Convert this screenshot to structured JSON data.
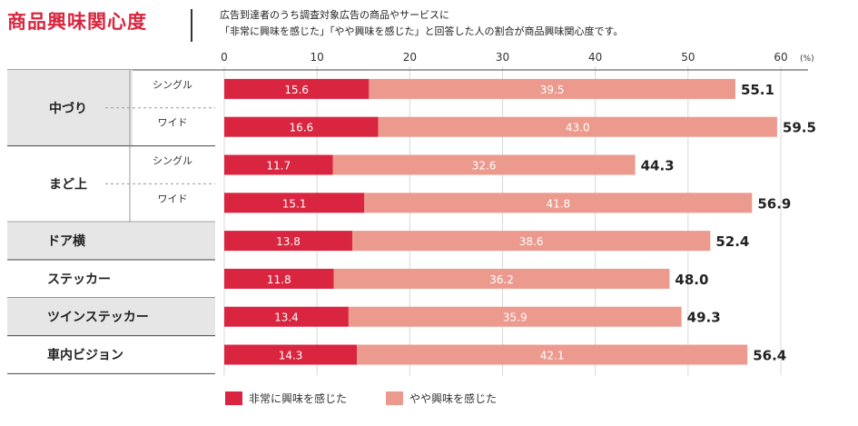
{
  "header": {
    "title": "商品興味関心度",
    "description_line1": "広告到達者のうち調査対象広告の商品やサービスに",
    "description_line2": "「非常に興味を感じた」「やや興味を感じた」と回答した人の割合が商品興味関心度です。"
  },
  "chart_data": {
    "type": "bar",
    "orientation": "horizontal",
    "stacked": true,
    "xlim": [
      0,
      60
    ],
    "x_ticks": [
      0,
      10,
      20,
      30,
      40,
      50,
      60
    ],
    "x_unit": "(%)",
    "grid": true,
    "legend_position": "bottom",
    "groups": [
      {
        "label": "中づり",
        "rows": [
          {
            "sub": "シングル",
            "values": [
              15.6,
              39.5
            ],
            "total": "55.1"
          },
          {
            "sub": "ワイド",
            "values": [
              16.6,
              43.0
            ],
            "total": "59.5"
          }
        ]
      },
      {
        "label": "まど上",
        "rows": [
          {
            "sub": "シングル",
            "values": [
              11.7,
              32.6
            ],
            "total": "44.3"
          },
          {
            "sub": "ワイド",
            "values": [
              15.1,
              41.8
            ],
            "total": "56.9"
          }
        ]
      },
      {
        "label": "ドア横",
        "rows": [
          {
            "sub": "",
            "values": [
              13.8,
              38.6
            ],
            "total": "52.4"
          }
        ]
      },
      {
        "label": "ステッカー",
        "rows": [
          {
            "sub": "",
            "values": [
              11.8,
              36.2
            ],
            "total": "48.0"
          }
        ]
      },
      {
        "label": "ツインステッカー",
        "rows": [
          {
            "sub": "",
            "values": [
              13.4,
              35.9
            ],
            "total": "49.3"
          }
        ]
      },
      {
        "label": "車内ビジョン",
        "rows": [
          {
            "sub": "",
            "values": [
              14.3,
              42.1
            ],
            "total": "56.4"
          }
        ]
      }
    ],
    "series": [
      {
        "name": "非常に興味を感じた",
        "color": "#d9253f"
      },
      {
        "name": "やや興味を感じた",
        "color": "#ec9a8e"
      }
    ]
  }
}
